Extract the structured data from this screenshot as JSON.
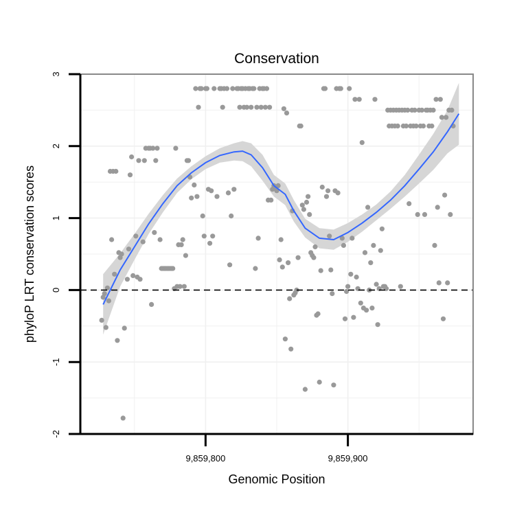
{
  "chart_data": {
    "type": "scatter",
    "title": "Conservation",
    "xlabel": "Genomic Position",
    "ylabel": "phyloP LRT conservation scores",
    "xlim": [
      9859712,
      9859988
    ],
    "ylim": [
      -2,
      3
    ],
    "x_ticks": [
      9859800,
      9859900
    ],
    "x_tick_labels": [
      "9,859,800",
      "9,859,900"
    ],
    "y_ticks": [
      -2,
      -1,
      0,
      1,
      2,
      3
    ],
    "y_tick_labels": [
      "-2",
      "-1",
      "0",
      "1",
      "2",
      "3"
    ],
    "reference_line": {
      "y": 0,
      "style": "dashed"
    },
    "colors": {
      "points": "#999999",
      "smooth_line": "#3366FF",
      "ribbon": "#d6d6d6",
      "grid": "#f0f0f0",
      "panel_border": "#888888"
    },
    "points": [
      [
        9859727,
        -0.42
      ],
      [
        9859728,
        -0.1
      ],
      [
        9859729,
        -0.05
      ],
      [
        9859730,
        -0.52
      ],
      [
        9859731,
        0.03
      ],
      [
        9859732,
        -0.15
      ],
      [
        9859733,
        1.65
      ],
      [
        9859734,
        0.7
      ],
      [
        9859735,
        1.65
      ],
      [
        9859736,
        0.22
      ],
      [
        9859737,
        1.65
      ],
      [
        9859738,
        -0.7
      ],
      [
        9859739,
        0.52
      ],
      [
        9859740,
        0.45
      ],
      [
        9859741,
        0.5
      ],
      [
        9859742,
        -1.78
      ],
      [
        9859743,
        -0.53
      ],
      [
        9859745,
        0.15
      ],
      [
        9859746,
        0.57
      ],
      [
        9859747,
        1.6
      ],
      [
        9859748,
        1.85
      ],
      [
        9859749,
        0.2
      ],
      [
        9859751,
        0.75
      ],
      [
        9859752,
        0.18
      ],
      [
        9859753,
        1.8
      ],
      [
        9859754,
        0.15
      ],
      [
        9859756,
        0.67
      ],
      [
        9859757,
        1.8
      ],
      [
        9859758,
        1.97
      ],
      [
        9859760,
        1.97
      ],
      [
        9859761,
        1.97
      ],
      [
        9859762,
        -0.2
      ],
      [
        9859763,
        1.97
      ],
      [
        9859764,
        0.8
      ],
      [
        9859765,
        1.8
      ],
      [
        9859766,
        1.97
      ],
      [
        9859768,
        0.7
      ],
      [
        9859769,
        0.3
      ],
      [
        9859770,
        0.3
      ],
      [
        9859771,
        0.3
      ],
      [
        9859772,
        0.3
      ],
      [
        9859773,
        0.3
      ],
      [
        9859774,
        0.3
      ],
      [
        9859775,
        0.3
      ],
      [
        9859776,
        0.3
      ],
      [
        9859777,
        0.3
      ],
      [
        9859778,
        0.02
      ],
      [
        9859779,
        1.97
      ],
      [
        9859780,
        0.05
      ],
      [
        9859781,
        0.63
      ],
      [
        9859782,
        0.05
      ],
      [
        9859783,
        0.63
      ],
      [
        9859784,
        0.7
      ],
      [
        9859785,
        0.05
      ],
      [
        9859786,
        0.48
      ],
      [
        9859787,
        1.8
      ],
      [
        9859788,
        1.8
      ],
      [
        9859789,
        1.57
      ],
      [
        9859790,
        1.28
      ],
      [
        9859792,
        1.46
      ],
      [
        9859793,
        2.8
      ],
      [
        9859794,
        1.3
      ],
      [
        9859795,
        2.54
      ],
      [
        9859796,
        2.8
      ],
      [
        9859797,
        2.8
      ],
      [
        9859798,
        1.03
      ],
      [
        9859799,
        0.75
      ],
      [
        9859800,
        2.8
      ],
      [
        9859801,
        2.8
      ],
      [
        9859802,
        1.4
      ],
      [
        9859803,
        0.65
      ],
      [
        9859804,
        1.38
      ],
      [
        9859805,
        0.75
      ],
      [
        9859806,
        2.8
      ],
      [
        9859808,
        1.3
      ],
      [
        9859810,
        2.8
      ],
      [
        9859811,
        2.8
      ],
      [
        9859812,
        2.54
      ],
      [
        9859813,
        2.8
      ],
      [
        9859815,
        2.8
      ],
      [
        9859816,
        1.35
      ],
      [
        9859817,
        0.35
      ],
      [
        9859818,
        1.03
      ],
      [
        9859819,
        2.8
      ],
      [
        9859820,
        1.4
      ],
      [
        9859822,
        2.8
      ],
      [
        9859823,
        2.8
      ],
      [
        9859824,
        2.54
      ],
      [
        9859825,
        2.8
      ],
      [
        9859826,
        2.8
      ],
      [
        9859827,
        2.54
      ],
      [
        9859828,
        2.8
      ],
      [
        9859829,
        2.54
      ],
      [
        9859830,
        2.8
      ],
      [
        9859831,
        2.8
      ],
      [
        9859832,
        2.54
      ],
      [
        9859833,
        2.8
      ],
      [
        9859834,
        2.8
      ],
      [
        9859835,
        0.3
      ],
      [
        9859836,
        2.54
      ],
      [
        9859837,
        0.72
      ],
      [
        9859838,
        2.8
      ],
      [
        9859839,
        2.54
      ],
      [
        9859840,
        2.8
      ],
      [
        9859841,
        2.8
      ],
      [
        9859842,
        2.54
      ],
      [
        9859843,
        2.8
      ],
      [
        9859844,
        1.25
      ],
      [
        9859845,
        2.54
      ],
      [
        9859846,
        1.25
      ],
      [
        9859847,
        1.4
      ],
      [
        9859848,
        1.45
      ],
      [
        9859849,
        1.42
      ],
      [
        9859850,
        1.38
      ],
      [
        9859851,
        1.45
      ],
      [
        9859852,
        0.42
      ],
      [
        9859853,
        0.7
      ],
      [
        9859854,
        0.32
      ],
      [
        9859855,
        2.52
      ],
      [
        9859856,
        -0.68
      ],
      [
        9859857,
        2.46
      ],
      [
        9859858,
        0.38
      ],
      [
        9859859,
        -0.12
      ],
      [
        9859860,
        -0.82
      ],
      [
        9859861,
        1.1
      ],
      [
        9859862,
        -0.07
      ],
      [
        9859863,
        -0.04
      ],
      [
        9859864,
        0.0
      ],
      [
        9859865,
        0.45
      ],
      [
        9859866,
        2.28
      ],
      [
        9859867,
        2.28
      ],
      [
        9859868,
        1.18
      ],
      [
        9859869,
        1.12
      ],
      [
        9859870,
        -1.38
      ],
      [
        9859871,
        1.22
      ],
      [
        9859872,
        1.3
      ],
      [
        9859873,
        1.05
      ],
      [
        9859874,
        0.52
      ],
      [
        9859875,
        0.48
      ],
      [
        9859876,
        0.45
      ],
      [
        9859877,
        0.6
      ],
      [
        9859878,
        -0.35
      ],
      [
        9859879,
        -0.33
      ],
      [
        9859880,
        -1.28
      ],
      [
        9859881,
        0.27
      ],
      [
        9859882,
        1.43
      ],
      [
        9859883,
        2.8
      ],
      [
        9859884,
        2.8
      ],
      [
        9859885,
        1.3
      ],
      [
        9859886,
        1.38
      ],
      [
        9859887,
        0.75
      ],
      [
        9859888,
        0.28
      ],
      [
        9859889,
        -0.05
      ],
      [
        9859890,
        -1.32
      ],
      [
        9859891,
        1.38
      ],
      [
        9859892,
        2.8
      ],
      [
        9859893,
        1.35
      ],
      [
        9859894,
        2.8
      ],
      [
        9859895,
        2.8
      ],
      [
        9859896,
        0.72
      ],
      [
        9859897,
        0.62
      ],
      [
        9859898,
        -0.4
      ],
      [
        9859899,
        -0.02
      ],
      [
        9859900,
        0.05
      ],
      [
        9859901,
        2.8
      ],
      [
        9859902,
        0.22
      ],
      [
        9859903,
        0.72
      ],
      [
        9859904,
        -0.38
      ],
      [
        9859905,
        2.65
      ],
      [
        9859906,
        0.18
      ],
      [
        9859907,
        0.02
      ],
      [
        9859908,
        2.65
      ],
      [
        9859909,
        -0.18
      ],
      [
        9859910,
        2.05
      ],
      [
        9859911,
        -0.25
      ],
      [
        9859912,
        0.52
      ],
      [
        9859913,
        -0.28
      ],
      [
        9859914,
        1.15
      ],
      [
        9859915,
        0.0
      ],
      [
        9859916,
        0.38
      ],
      [
        9859917,
        -0.25
      ],
      [
        9859918,
        0.62
      ],
      [
        9859919,
        2.65
      ],
      [
        9859920,
        0.08
      ],
      [
        9859921,
        -0.48
      ],
      [
        9859922,
        0.02
      ],
      [
        9859923,
        0.55
      ],
      [
        9859924,
        0.85
      ],
      [
        9859925,
        0.05
      ],
      [
        9859926,
        0.05
      ],
      [
        9859927,
        0.02
      ],
      [
        9859928,
        2.5
      ],
      [
        9859929,
        2.28
      ],
      [
        9859930,
        2.5
      ],
      [
        9859931,
        2.28
      ],
      [
        9859932,
        2.5
      ],
      [
        9859933,
        2.28
      ],
      [
        9859934,
        2.5
      ],
      [
        9859935,
        2.28
      ],
      [
        9859936,
        2.5
      ],
      [
        9859937,
        0.05
      ],
      [
        9859938,
        2.5
      ],
      [
        9859939,
        2.28
      ],
      [
        9859940,
        2.5
      ],
      [
        9859941,
        2.28
      ],
      [
        9859942,
        2.5
      ],
      [
        9859943,
        1.2
      ],
      [
        9859944,
        2.28
      ],
      [
        9859945,
        2.5
      ],
      [
        9859946,
        2.28
      ],
      [
        9859947,
        2.5
      ],
      [
        9859948,
        2.28
      ],
      [
        9859949,
        1.05
      ],
      [
        9859950,
        2.5
      ],
      [
        9859951,
        2.28
      ],
      [
        9859952,
        2.5
      ],
      [
        9859953,
        2.28
      ],
      [
        9859954,
        1.05
      ],
      [
        9859955,
        2.5
      ],
      [
        9859956,
        2.5
      ],
      [
        9859957,
        2.28
      ],
      [
        9859958,
        2.5
      ],
      [
        9859959,
        2.28
      ],
      [
        9859960,
        2.5
      ],
      [
        9859961,
        0.62
      ],
      [
        9859962,
        2.65
      ],
      [
        9859963,
        1.15
      ],
      [
        9859964,
        0.1
      ],
      [
        9859965,
        2.65
      ],
      [
        9859966,
        2.4
      ],
      [
        9859967,
        -0.4
      ],
      [
        9859968,
        1.32
      ],
      [
        9859969,
        2.4
      ],
      [
        9859970,
        0.1
      ],
      [
        9859971,
        2.5
      ],
      [
        9859972,
        1.05
      ],
      [
        9859973,
        2.5
      ],
      [
        9859974,
        2.28
      ]
    ],
    "smooth_fit": {
      "x": [
        9859728,
        9859740,
        9859750,
        9859760,
        9859770,
        9859780,
        9859790,
        9859800,
        9859810,
        9859820,
        9859826,
        9859832,
        9859840,
        9859848,
        9859856,
        9859862,
        9859870,
        9859880,
        9859890,
        9859900,
        9859910,
        9859920,
        9859930,
        9859940,
        9859950,
        9859960,
        9859970,
        9859978
      ],
      "y": [
        -0.2,
        0.28,
        0.6,
        0.92,
        1.2,
        1.45,
        1.63,
        1.77,
        1.87,
        1.92,
        1.93,
        1.88,
        1.7,
        1.45,
        1.33,
        1.1,
        0.86,
        0.72,
        0.7,
        0.8,
        0.93,
        1.08,
        1.25,
        1.45,
        1.68,
        1.92,
        2.2,
        2.45
      ]
    },
    "confidence_band": {
      "x": [
        9859728,
        9859740,
        9859750,
        9859760,
        9859770,
        9859780,
        9859790,
        9859800,
        9859810,
        9859820,
        9859826,
        9859832,
        9859840,
        9859848,
        9859856,
        9859862,
        9859870,
        9859880,
        9859890,
        9859900,
        9859910,
        9859920,
        9859930,
        9859940,
        9859950,
        9859960,
        9859970,
        9859978
      ],
      "lower": [
        -0.62,
        0.05,
        0.42,
        0.78,
        1.08,
        1.35,
        1.54,
        1.68,
        1.77,
        1.8,
        1.79,
        1.72,
        1.52,
        1.3,
        1.18,
        0.95,
        0.73,
        0.58,
        0.56,
        0.67,
        0.81,
        0.97,
        1.13,
        1.3,
        1.48,
        1.67,
        1.9,
        2.02
      ],
      "upper": [
        0.22,
        0.51,
        0.78,
        1.06,
        1.32,
        1.55,
        1.72,
        1.86,
        1.97,
        2.04,
        2.07,
        2.04,
        1.88,
        1.6,
        1.48,
        1.25,
        0.99,
        0.86,
        0.84,
        0.93,
        1.05,
        1.19,
        1.37,
        1.6,
        1.88,
        2.17,
        2.5,
        2.88
      ]
    }
  }
}
